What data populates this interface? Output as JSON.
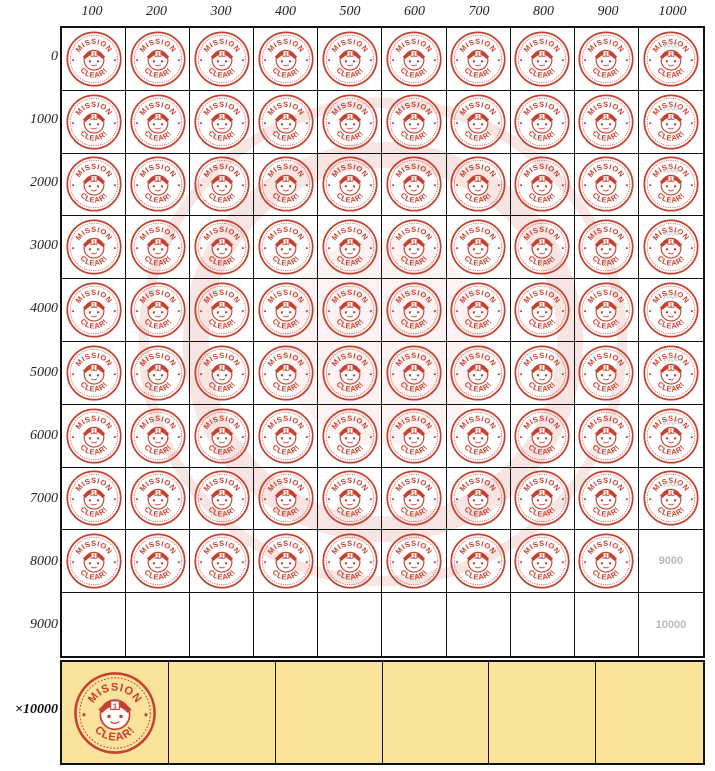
{
  "columns": [
    "100",
    "200",
    "300",
    "400",
    "500",
    "600",
    "700",
    "800",
    "900",
    "1000"
  ],
  "rows": [
    "0",
    "1000",
    "2000",
    "3000",
    "4000",
    "5000",
    "6000",
    "7000",
    "8000",
    "9000"
  ],
  "stamp": {
    "top_text": "MISSION",
    "bottom_text": "CLEAR!",
    "badge_number": "1",
    "faint_number": "1000",
    "color": "#c8402f"
  },
  "stamped_counts": [
    10,
    10,
    10,
    10,
    10,
    10,
    10,
    10,
    9,
    0
  ],
  "empty_cell_numbers": [
    {
      "row": 8,
      "col": 9,
      "text": "9000"
    },
    {
      "row": 9,
      "col": 9,
      "text": "10000"
    }
  ],
  "bonus_row": {
    "label": "×10000",
    "cells": 6,
    "stamped_cells": 1,
    "background": "#fbe39c"
  }
}
